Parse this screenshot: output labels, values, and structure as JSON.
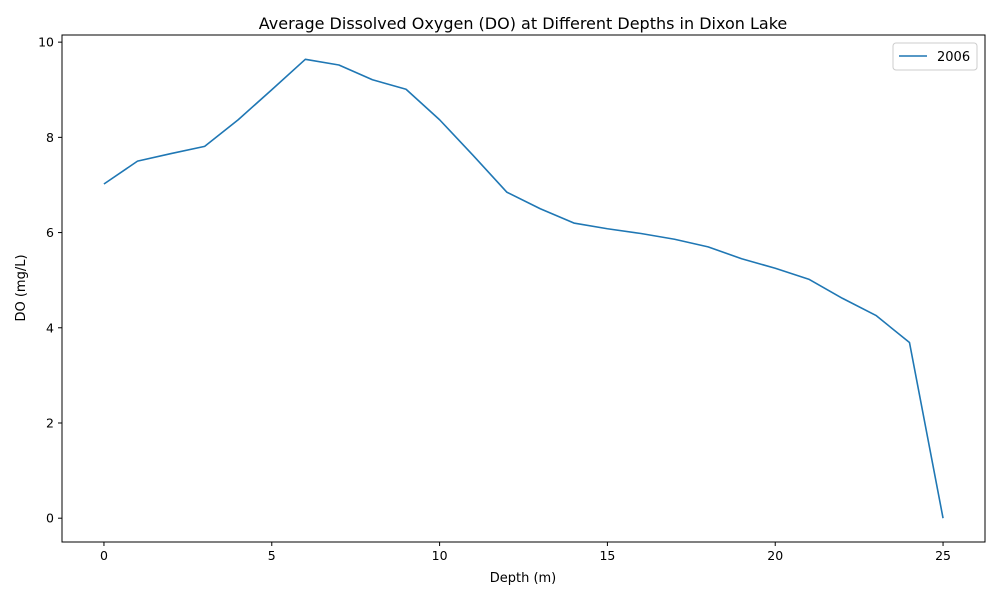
{
  "chart_data": {
    "type": "line",
    "title": "Average Dissolved Oxygen (DO) at Different Depths in Dixon Lake",
    "xlabel": "Depth (m)",
    "ylabel": "DO (mg/L)",
    "xlim": [
      -1.25,
      26.25
    ],
    "ylim": [
      -0.5,
      10.15
    ],
    "xticks": [
      0,
      5,
      10,
      15,
      20,
      25
    ],
    "yticks": [
      0,
      2,
      4,
      6,
      8,
      10
    ],
    "grid": false,
    "legend_position": "top-right",
    "series": [
      {
        "name": "2006",
        "color": "#1f77b4",
        "x": [
          0,
          1,
          2,
          3,
          4,
          5,
          6,
          7,
          8,
          9,
          10,
          11,
          12,
          13,
          14,
          15,
          16,
          17,
          18,
          19,
          20,
          21,
          22,
          23,
          24,
          25
        ],
        "y": [
          7.02,
          7.5,
          7.66,
          7.81,
          8.37,
          9.0,
          9.64,
          9.52,
          9.21,
          9.01,
          8.37,
          7.62,
          6.85,
          6.5,
          6.2,
          6.08,
          5.98,
          5.86,
          5.7,
          5.45,
          5.25,
          5.02,
          4.62,
          4.26,
          3.69,
          0.0
        ]
      }
    ]
  }
}
